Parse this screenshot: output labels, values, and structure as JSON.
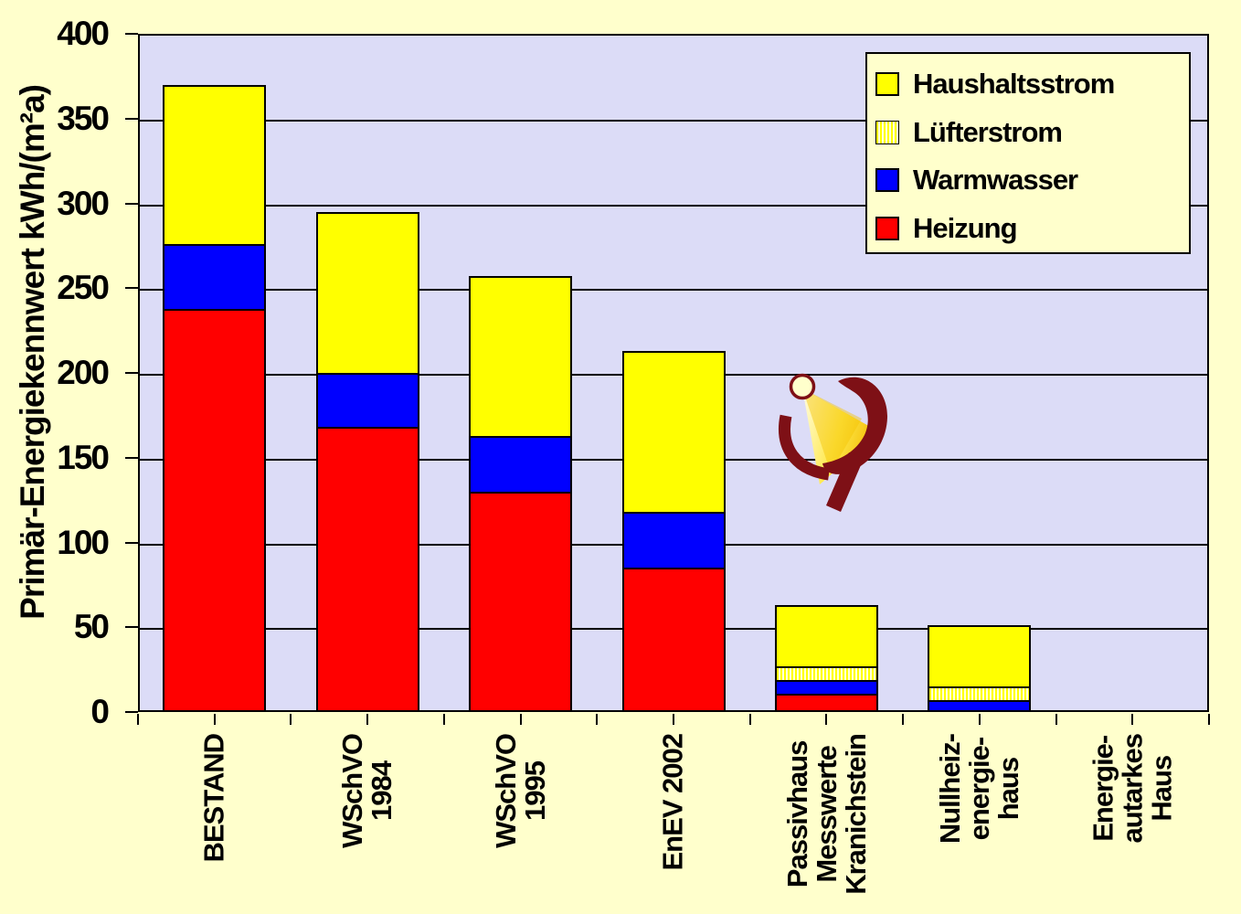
{
  "page": {
    "background_color": "#FFFFCC",
    "plot_background_color": "#DCDCF7"
  },
  "chart_data": {
    "type": "bar",
    "stacked": true,
    "title": "",
    "xlabel": "",
    "ylabel": "Primär-Energiekennwert  kWh/(m²a)",
    "ylim": [
      0,
      400
    ],
    "yticks": [
      0,
      50,
      100,
      150,
      200,
      250,
      300,
      350,
      400
    ],
    "grid": true,
    "legend_position": "top-right",
    "categories": [
      "BESTAND",
      "WSchVO\n1984",
      "WSchVO\n1995",
      "EnEV 2002",
      "Passivhaus\nMesswerte\nKranichstein",
      "Nullheiz-\nenergie-\nhaus",
      "Energie-\nautarkes\nHaus"
    ],
    "series": [
      {
        "name": "Heizung",
        "color": "#FF0000",
        "values": [
          238,
          168,
          130,
          85,
          11,
          0,
          0
        ]
      },
      {
        "name": "Warmwasser",
        "color": "#0000FF",
        "values": [
          38,
          32,
          33,
          33,
          8,
          7,
          0
        ]
      },
      {
        "name": "Lüfterstrom",
        "color": "#FFFF00",
        "pattern": "vertical-stripes",
        "pattern_bg": "#FFFFDD",
        "values": [
          0,
          0,
          0,
          0,
          8,
          8,
          0
        ]
      },
      {
        "name": "Haushaltsstrom",
        "color": "#FFFF00",
        "values": [
          94,
          95,
          94,
          95,
          36,
          36,
          0
        ]
      }
    ],
    "totals": [
      370,
      295,
      257,
      213,
      63,
      51,
      0
    ]
  },
  "legend": {
    "items": [
      {
        "label": "Haushaltsstrom",
        "swatch": "solid",
        "color": "#FFFF00"
      },
      {
        "label": "Lüfterstrom",
        "swatch": "stripes",
        "color": "#FFFF00",
        "pattern_bg": "#FFFFDD"
      },
      {
        "label": "Warmwasser",
        "swatch": "solid",
        "color": "#0000FF"
      },
      {
        "label": "Heizung",
        "swatch": "solid",
        "color": "#FF0000"
      }
    ]
  },
  "logo": {
    "name": "Passivhaus Institut logo",
    "main_color": "#7E1016",
    "cone_colors": [
      "#FFFDE8",
      "#FFE94D",
      "#F2BC02"
    ],
    "circle_fill": "#FFFFCC"
  }
}
